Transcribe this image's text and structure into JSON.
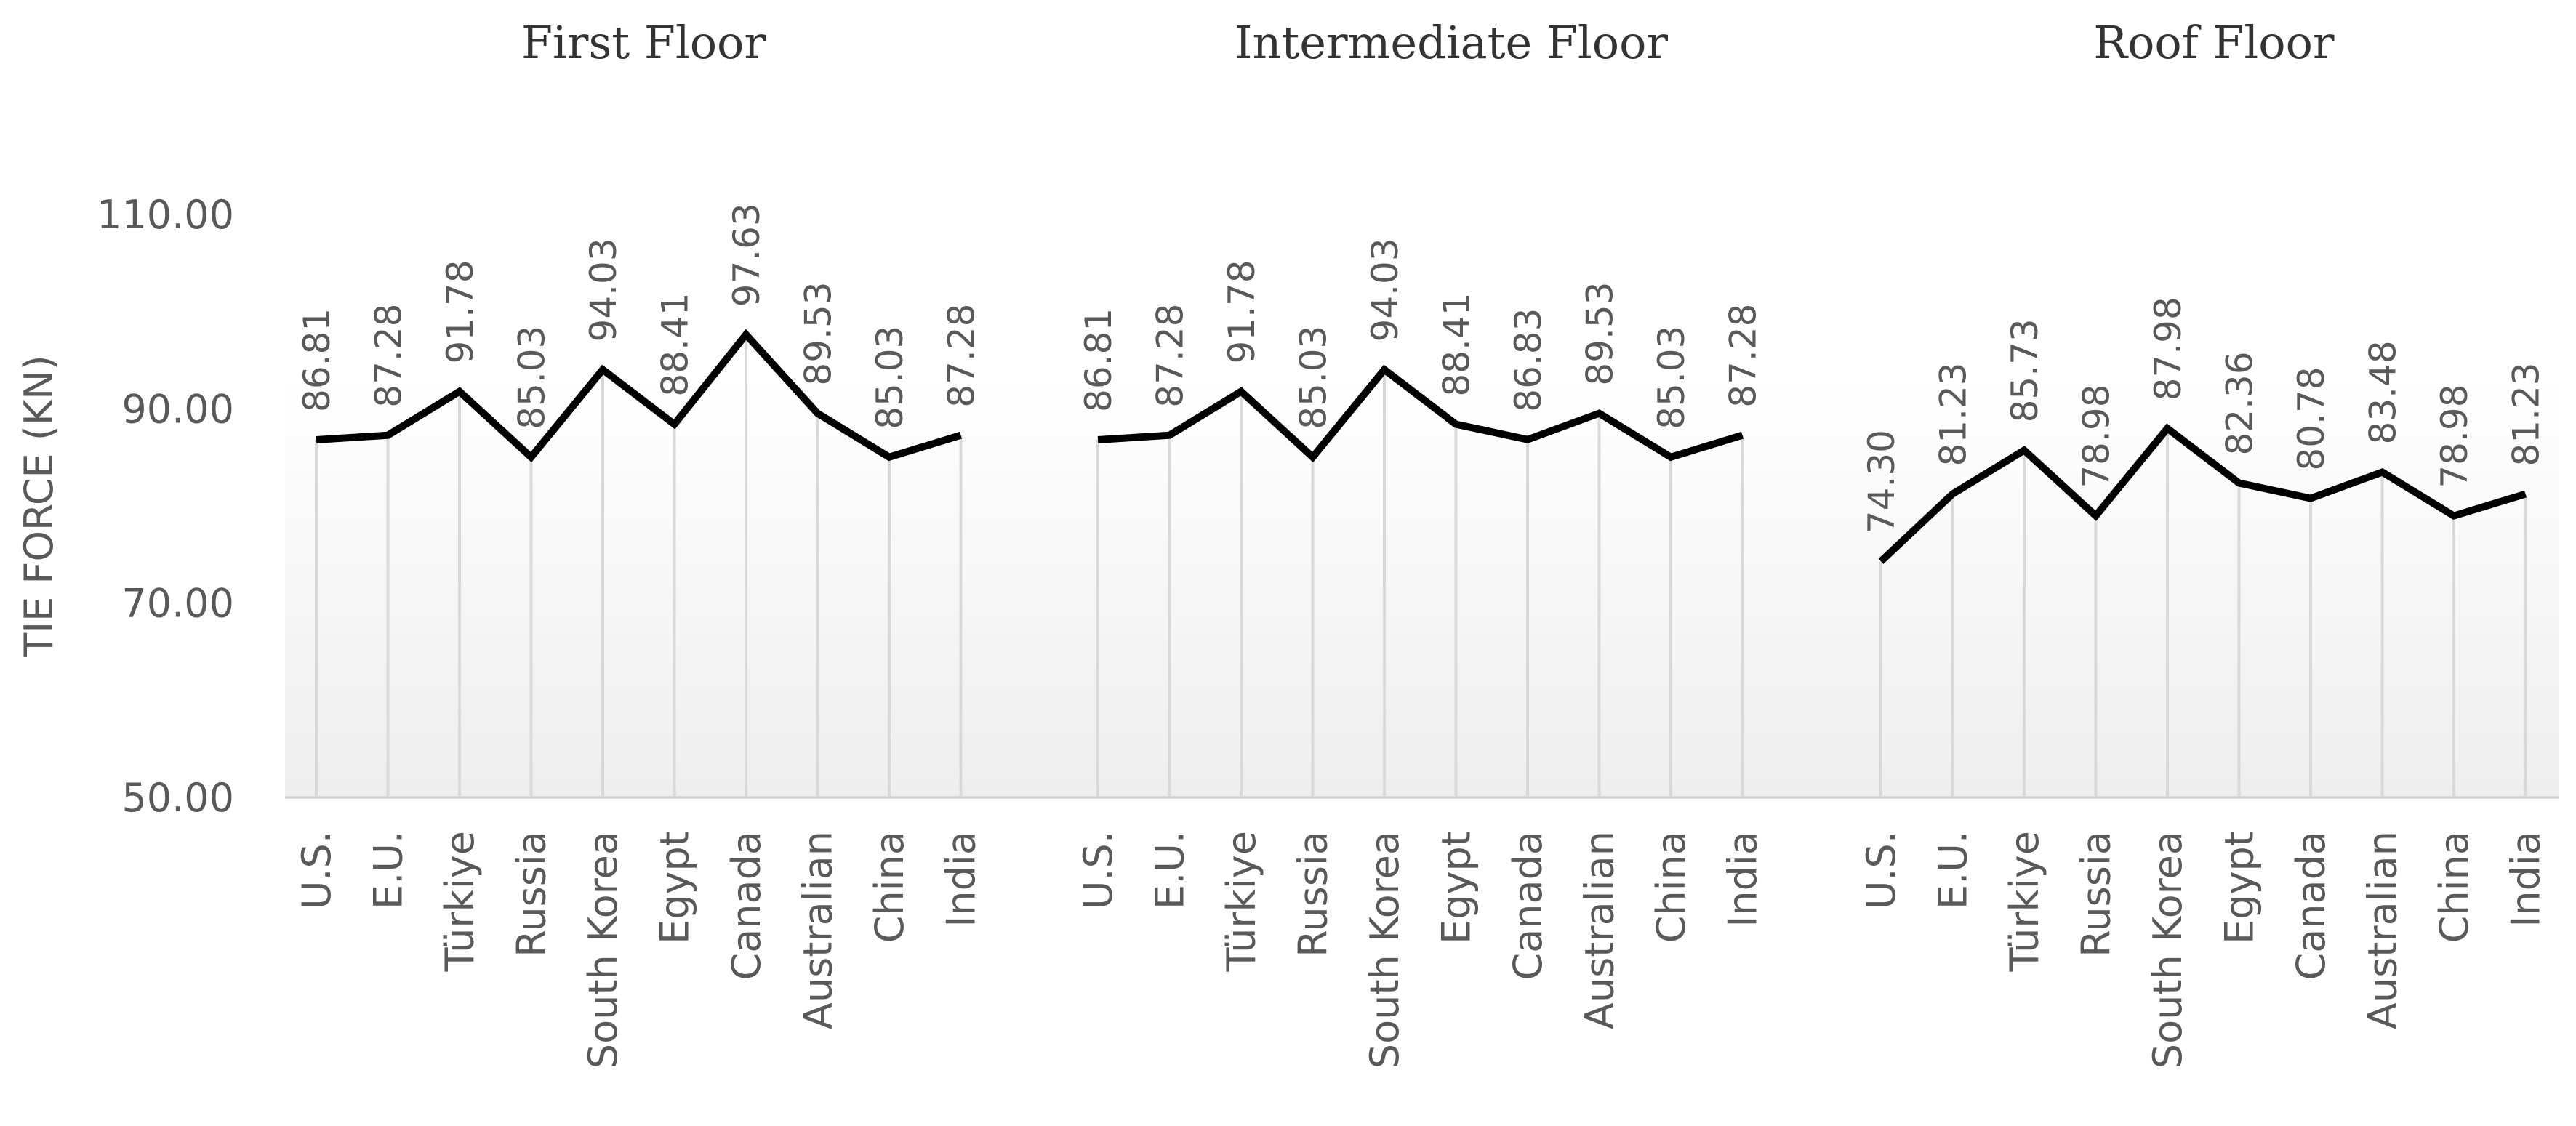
{
  "chart_data": {
    "type": "line",
    "ylabel": "TIE FORCE (KN)",
    "ylim": [
      50,
      110
    ],
    "yticks": [
      "50.00",
      "70.00",
      "90.00",
      "110.00"
    ],
    "categories": [
      "U.S.",
      "E.U.",
      "Türkiye",
      "Russia",
      "South Korea",
      "Egypt",
      "Canada",
      "Australian",
      "China",
      "India"
    ],
    "line_color": "#000000",
    "drop_line_color": "#d9d9d9",
    "panels": [
      {
        "title": "First Floor",
        "values": [
          86.81,
          87.28,
          91.78,
          85.03,
          94.03,
          88.41,
          97.63,
          89.53,
          85.03,
          87.28
        ],
        "labels": [
          "86.81",
          "87.28",
          "91.78",
          "85.03",
          "94.03",
          "88.41",
          "97.63",
          "89.53",
          "85.03",
          "87.28"
        ]
      },
      {
        "title": "Intermediate Floor",
        "values": [
          86.81,
          87.28,
          91.78,
          85.03,
          94.03,
          88.41,
          86.83,
          89.53,
          85.03,
          87.28
        ],
        "labels": [
          "86.81",
          "87.28",
          "91.78",
          "85.03",
          "94.03",
          "88.41",
          "86.83",
          "89.53",
          "85.03",
          "87.28"
        ]
      },
      {
        "title": "Roof Floor",
        "values": [
          74.3,
          81.23,
          85.73,
          78.98,
          87.98,
          82.36,
          80.78,
          83.48,
          78.98,
          81.23
        ],
        "labels": [
          "74.30",
          "81.23",
          "85.73",
          "78.98",
          "87.98",
          "82.36",
          "80.78",
          "83.48",
          "78.98",
          "81.23"
        ]
      }
    ]
  }
}
